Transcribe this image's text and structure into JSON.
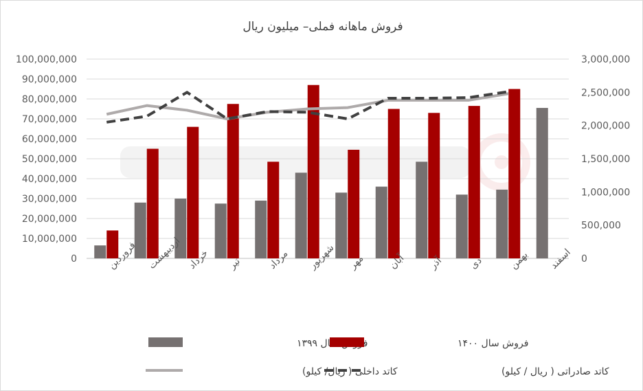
{
  "chart_data": {
    "type": "bar",
    "title": "فروش ماهانه فملی– میلیون ریال",
    "categories": [
      "فروردین",
      "اردیبهشت",
      "خرداد",
      "تیر",
      "مرداد",
      "شهریور",
      "مهر",
      "آبان",
      "آذر",
      "دی",
      "بهمن",
      "اسفند"
    ],
    "y_left": {
      "min": 0,
      "max": 100000000,
      "step": 10000000,
      "ticks": [
        "0",
        "10,000,000",
        "20,000,000",
        "30,000,000",
        "40,000,000",
        "50,000,000",
        "60,000,000",
        "70,000,000",
        "80,000,000",
        "90,000,000",
        "100,000,000"
      ]
    },
    "y_right": {
      "min": 0,
      "max": 3000000,
      "step": 500000,
      "ticks": [
        "0",
        "500,000",
        "1,000,000",
        "1,500,000",
        "2,000,000",
        "2,500,000",
        "3,000,000"
      ]
    },
    "grid": true,
    "legend_position": "bottom",
    "series": [
      {
        "name": "فروش سال ۱۳۹۹",
        "kind": "bar",
        "axis": "left",
        "color": "#767171",
        "values": [
          6500000,
          28000000,
          30000000,
          27500000,
          29000000,
          43000000,
          33000000,
          36000000,
          48500000,
          32000000,
          34500000,
          75500000
        ]
      },
      {
        "name": "فروش سال ۱۴۰۰",
        "kind": "bar",
        "axis": "left",
        "color": "#A50000",
        "values": [
          14000000,
          55000000,
          66000000,
          77500000,
          48500000,
          87000000,
          54500000,
          75000000,
          73000000,
          76500000,
          85000000,
          null
        ]
      },
      {
        "name": "کاتد داخلی ( ریال/ کیلو)",
        "kind": "line",
        "axis": "right",
        "color": "#AEAAAA",
        "dash": "solid",
        "values": [
          2170000,
          2300000,
          2230000,
          2100000,
          2200000,
          2250000,
          2270000,
          2380000,
          2380000,
          2380000,
          2480000,
          null
        ]
      },
      {
        "name": "کاتد صادراتی ( ریال / کیلو)",
        "kind": "line",
        "axis": "right",
        "color": "#404040",
        "dash": "dashed",
        "values": [
          2050000,
          2140000,
          2500000,
          2100000,
          2210000,
          2200000,
          2100000,
          2410000,
          2410000,
          2420000,
          2510000,
          null
        ]
      }
    ]
  }
}
